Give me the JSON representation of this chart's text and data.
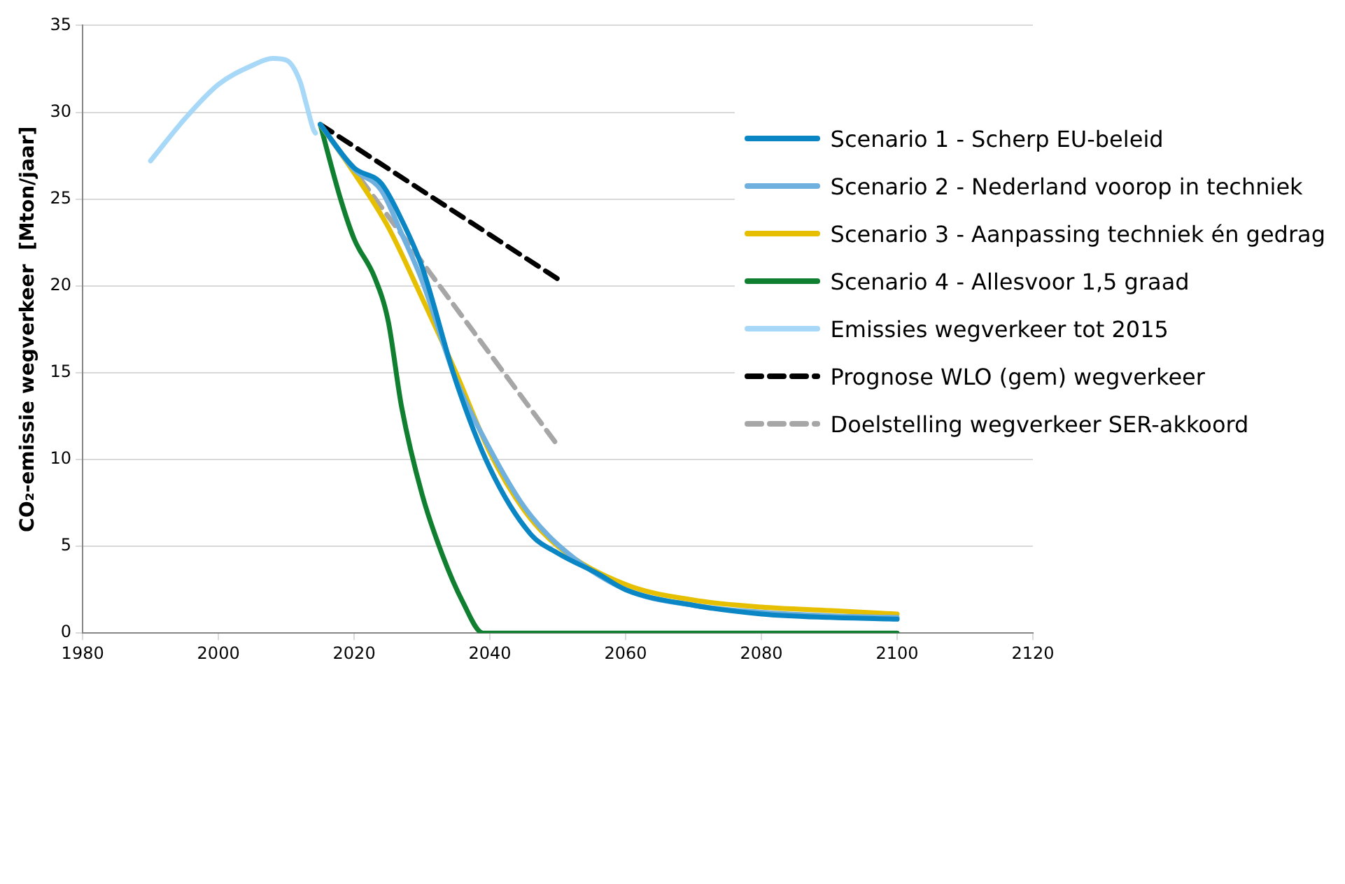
{
  "chart_data": {
    "type": "line",
    "ylabel": "CO₂-emissie wegverkeer  [Mton/jaar]",
    "xlim": [
      1980,
      2120
    ],
    "xticks": [
      1980,
      2000,
      2020,
      2040,
      2060,
      2080,
      2100,
      2120
    ],
    "ylim": [
      0,
      35
    ],
    "yticks": [
      0,
      5,
      10,
      15,
      20,
      25,
      30,
      35
    ],
    "grid": "y",
    "legend": "right",
    "marker": "none",
    "series": [
      {
        "name": "Scenario 1 - Scherp EU-beleid",
        "color": "#0a86c4",
        "x": [
          2015,
          2020,
          2024,
          2027,
          2030,
          2035,
          2040,
          2046,
          2050,
          2056,
          2060,
          2070,
          2080,
          2090,
          2100
        ],
        "values": [
          29.3,
          26.8,
          25.9,
          23.8,
          21.1,
          14.5,
          9.5,
          5.7,
          4.6,
          3.4,
          2.5,
          1.6,
          1.1,
          0.9,
          0.8
        ]
      },
      {
        "name": "Scenario 2 - Nederland voorop in techniek",
        "color": "#6fb0df",
        "x": [
          2015,
          2020,
          2024,
          2027,
          2030,
          2035,
          2040,
          2045,
          2050,
          2060,
          2070,
          2080,
          2090,
          2100
        ],
        "values": [
          29.3,
          26.7,
          25.5,
          23.0,
          20.3,
          14.6,
          10.6,
          7.3,
          5.1,
          2.5,
          1.6,
          1.2,
          1.0,
          0.9
        ]
      },
      {
        "name": "Scenario 3 - Aanpassing techniek én gedrag",
        "color": "#e6c000",
        "x": [
          2015,
          2020,
          2025,
          2030,
          2035,
          2040,
          2045,
          2050,
          2060,
          2070,
          2080,
          2090,
          2100
        ],
        "values": [
          29.3,
          26.5,
          23.4,
          19.3,
          15.0,
          10.4,
          7.1,
          5.0,
          2.8,
          1.9,
          1.5,
          1.3,
          1.1
        ]
      },
      {
        "name": "Scenario 4 - Allesvoor 1,5 graad",
        "color": "#108030",
        "x": [
          2015,
          2018,
          2020,
          2023,
          2025,
          2027,
          2030,
          2033,
          2036,
          2039,
          2100
        ],
        "values": [
          29.3,
          25.0,
          22.7,
          20.5,
          18.0,
          13.0,
          8.0,
          4.5,
          1.8,
          0,
          0
        ]
      },
      {
        "name": "Emissies wegverkeer tot 2015",
        "color": "#a8d8f8",
        "x": [
          1990,
          1995,
          2000,
          2005,
          2008,
          2010,
          2012,
          2013,
          2014,
          2014.3
        ],
        "values": [
          27.2,
          29.6,
          31.6,
          32.7,
          33.1,
          33.0,
          31.8,
          30.4,
          29.0,
          28.8
        ]
      },
      {
        "name": "Prognose WLO (gem) wegverkeer",
        "color": "#000000",
        "line_style": "dashed",
        "x": [
          2015,
          2050
        ],
        "values": [
          29.3,
          20.4
        ]
      },
      {
        "name": "Doelstelling wegverkeer SER-akkoord",
        "color": "#a6a6a6",
        "line_style": "dashed",
        "x": [
          2015,
          2050
        ],
        "values": [
          29.3,
          10.8
        ]
      }
    ]
  }
}
